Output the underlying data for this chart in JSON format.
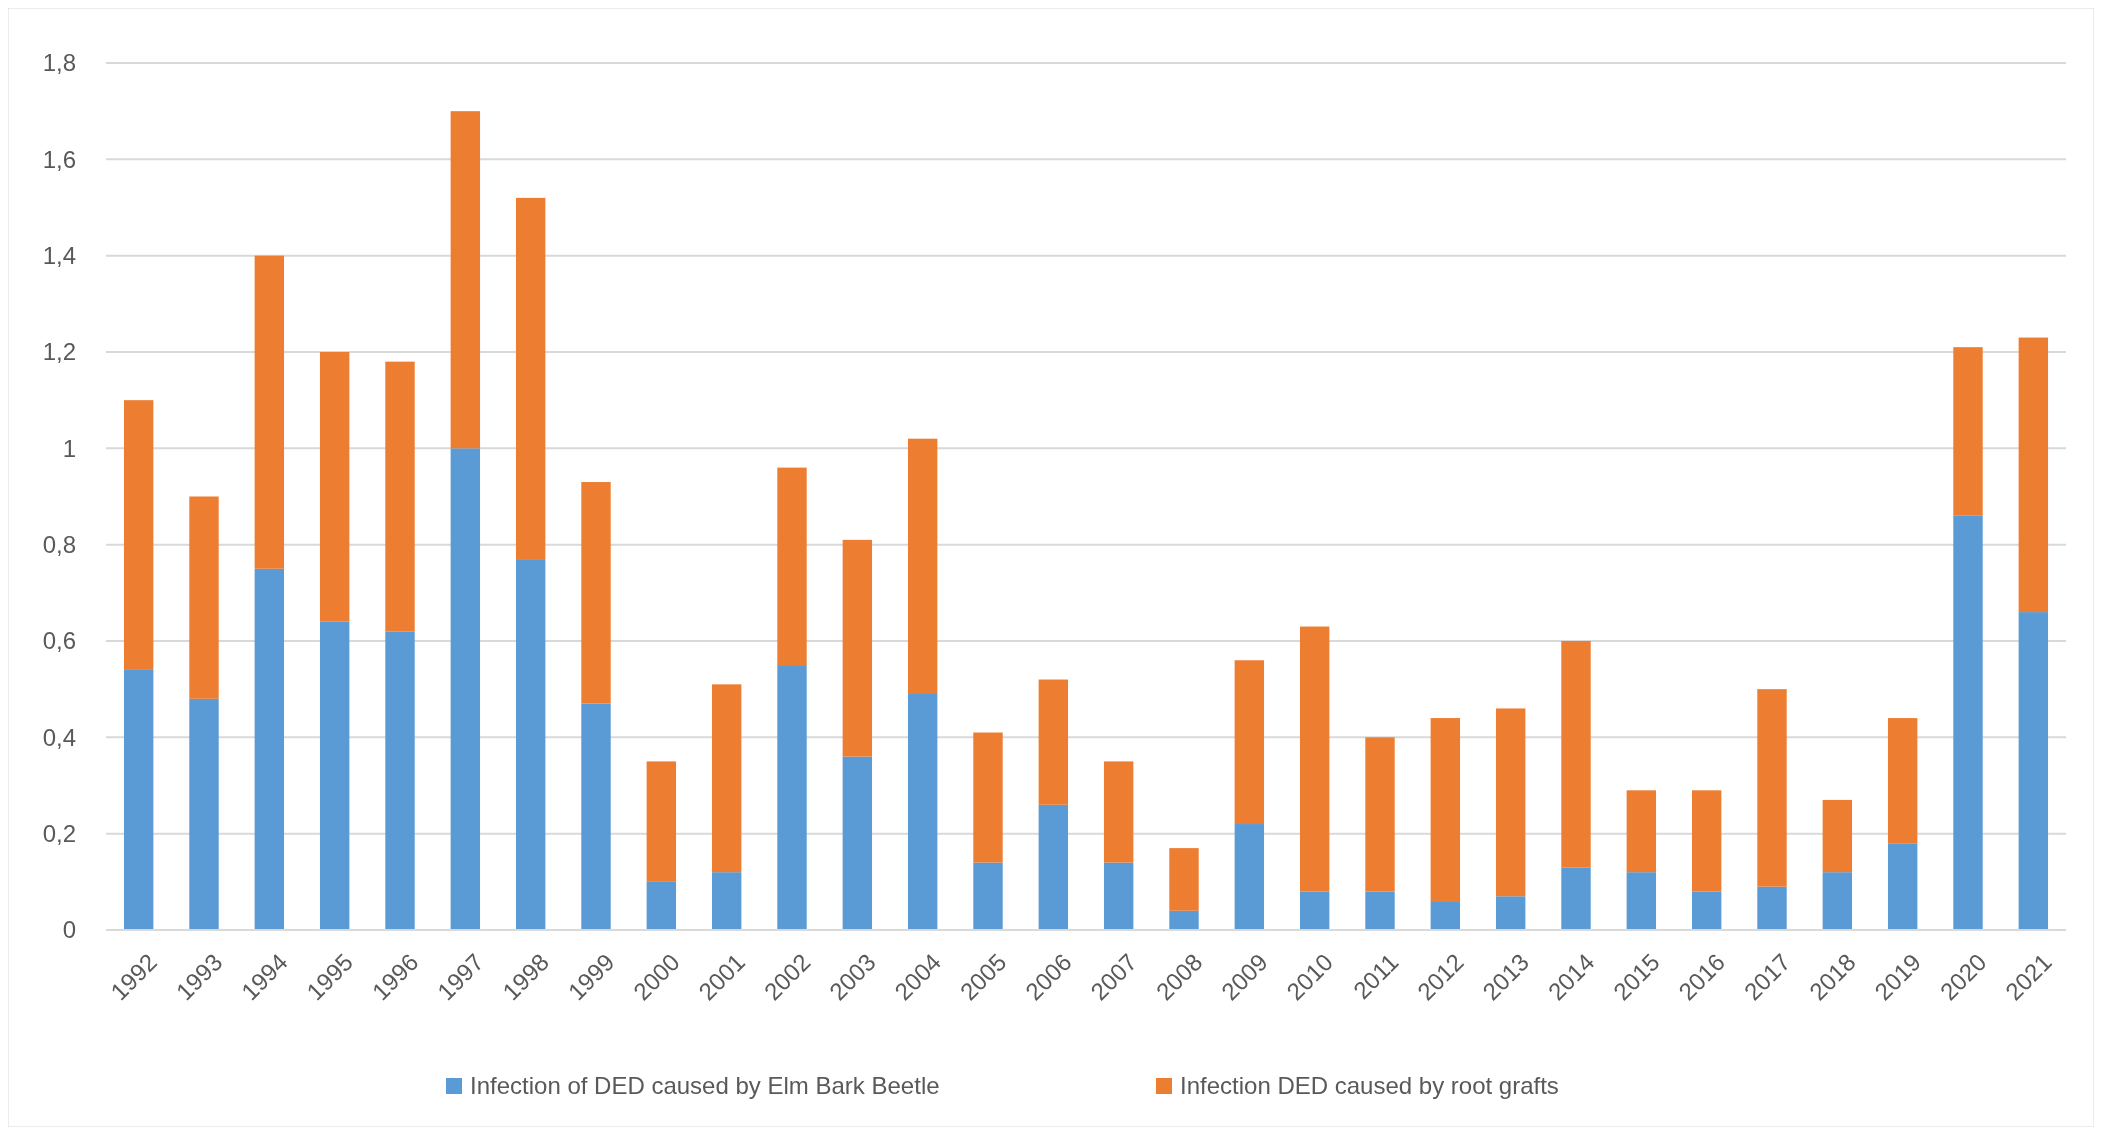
{
  "chart_data": {
    "type": "bar",
    "stacked": true,
    "grid": "y",
    "legend": "bottom",
    "categories": [
      "1992",
      "1993",
      "1994",
      "1995",
      "1996",
      "1997",
      "1998",
      "1999",
      "2000",
      "2001",
      "2002",
      "2003",
      "2004",
      "2005",
      "2006",
      "2007",
      "2008",
      "2009",
      "2010",
      "2011",
      "2012",
      "2013",
      "2014",
      "2015",
      "2016",
      "2017",
      "2018",
      "2019",
      "2020",
      "2021"
    ],
    "ylim": [
      0,
      1.8
    ],
    "yticks": [
      0,
      {
        "value": 0.2,
        "label": "0,2"
      },
      {
        "value": 0.4,
        "label": "0,4"
      },
      {
        "value": 0.6,
        "label": "0,6"
      },
      {
        "value": 0.8,
        "label": "0,8"
      },
      1,
      {
        "value": 1.2,
        "label": "1,2"
      },
      {
        "value": 1.4,
        "label": "1,4"
      },
      {
        "value": 1.6,
        "label": "1,6"
      },
      {
        "value": 1.8,
        "label": "1,8"
      }
    ],
    "series": [
      {
        "name": "Infection of DED caused by Elm Bark Beetle",
        "color": "#5b9bd5",
        "values": [
          0.54,
          0.48,
          0.75,
          0.64,
          0.62,
          1.0,
          0.77,
          0.47,
          0.1,
          0.12,
          0.55,
          0.36,
          0.49,
          0.14,
          0.26,
          0.14,
          0.04,
          0.22,
          0.08,
          0.08,
          0.06,
          0.07,
          0.13,
          0.12,
          0.08,
          0.09,
          0.12,
          0.18,
          0.86,
          0.66
        ]
      },
      {
        "name": "Infection DED caused by root grafts",
        "color": "#ed7d31",
        "values": [
          0.56,
          0.42,
          0.65,
          0.56,
          0.56,
          0.7,
          0.75,
          0.46,
          0.25,
          0.39,
          0.41,
          0.45,
          0.53,
          0.27,
          0.26,
          0.21,
          0.13,
          0.34,
          0.55,
          0.32,
          0.38,
          0.39,
          0.47,
          0.17,
          0.21,
          0.41,
          0.15,
          0.26,
          0.35,
          0.57
        ]
      }
    ]
  }
}
